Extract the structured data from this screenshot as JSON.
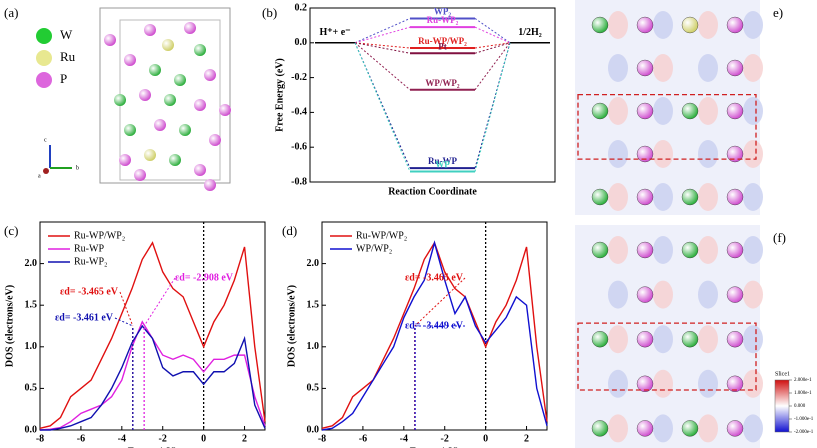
{
  "structure": {
    "label": "(a)",
    "legend": [
      {
        "name": "W",
        "color": "#22cc33"
      },
      {
        "name": "Ru",
        "color": "#e8e890"
      },
      {
        "name": "P",
        "color": "#dd66dd"
      }
    ],
    "axes": [
      "c",
      "a",
      "b"
    ]
  },
  "maps": [
    {
      "label": "e)"
    },
    {
      "label": "(f)"
    }
  ],
  "colorbar": {
    "title": "Slice1",
    "ticks": [
      {
        "value": 0.2,
        "label": "2.000e-1"
      },
      {
        "value": 0.1,
        "label": "1.000e-1"
      },
      {
        "value": 0,
        "label": "0.000"
      },
      {
        "value": -0.1,
        "label": "-1.000e-1"
      },
      {
        "value": -0.2,
        "label": "-2.000e-1"
      }
    ]
  },
  "chart_data": [
    {
      "type": "level",
      "label": "(b)",
      "ylabel": "Free Energy (eV)",
      "xlabel": "Reaction Coordinate",
      "endpoints": [
        {
          "label": "H⁺+ e⁻",
          "value": 0
        },
        {
          "label": "1/2H₂",
          "value": 0
        }
      ],
      "levels": [
        {
          "name": "WP₂",
          "value": 0.14,
          "color": "#5050c8"
        },
        {
          "name": "Ru-WP₂",
          "value": 0.09,
          "color": "#e040e0"
        },
        {
          "name": "Ru-WP/WP₂",
          "value": -0.03,
          "color": "#e02020"
        },
        {
          "name": "Pt",
          "value": -0.06,
          "color": "#801040"
        },
        {
          "name": "WP/WP₂",
          "value": -0.27,
          "color": "#902050"
        },
        {
          "name": "Ru-WP",
          "value": -0.72,
          "color": "#202090"
        },
        {
          "name": "WP",
          "value": -0.74,
          "color": "#40d0c0"
        }
      ],
      "ylim": [
        -0.8,
        0.2
      ],
      "yticks": [
        -0.8,
        -0.6,
        -0.4,
        -0.2,
        {
          "value": 0,
          "label": "0.0"
        },
        0.2
      ]
    },
    {
      "type": "line",
      "label": "(c)",
      "ylabel": "DOS (electrons/eV)",
      "xlabel": "Energy(eV)",
      "x": [
        -8,
        -7.5,
        -7,
        -6.5,
        -6,
        -5.5,
        -5,
        -4.5,
        -4,
        -3.5,
        -3,
        -2.5,
        -2,
        -1.5,
        -1,
        -0.5,
        0,
        0.5,
        1,
        1.5,
        2,
        2.5,
        3
      ],
      "series": [
        {
          "name": "Ru-WP/WP₂",
          "color": "#e01010",
          "values": [
            0.02,
            0.05,
            0.15,
            0.4,
            0.5,
            0.6,
            0.85,
            1.1,
            1.4,
            1.7,
            2.05,
            2.25,
            1.9,
            1.7,
            1.6,
            1.3,
            1.0,
            1.3,
            1.5,
            1.8,
            2.2,
            1.0,
            0.1
          ]
        },
        {
          "name": "Ru-WP",
          "color": "#e020e0",
          "values": [
            0,
            0.01,
            0.03,
            0.1,
            0.2,
            0.25,
            0.3,
            0.4,
            0.6,
            1.0,
            1.3,
            1.1,
            0.9,
            0.85,
            0.9,
            0.85,
            0.7,
            0.85,
            0.85,
            0.9,
            0.9,
            0.4,
            0.05
          ]
        },
        {
          "name": "Ru-WP₂",
          "color": "#1010b0",
          "values": [
            0,
            0,
            0.02,
            0.05,
            0.1,
            0.15,
            0.3,
            0.5,
            0.75,
            1.05,
            1.25,
            1.1,
            0.75,
            0.65,
            0.7,
            0.7,
            0.55,
            0.7,
            0.7,
            0.8,
            1.1,
            0.3,
            0.02
          ]
        }
      ],
      "d_band_centers": [
        {
          "value": -3.465,
          "label": "εd= -3.465 eV",
          "color": "#e01010"
        },
        {
          "value": -2.908,
          "label": "εd= -2.908 eV",
          "color": "#e020e0"
        },
        {
          "value": -3.461,
          "label": "εd= -3.461 eV",
          "color": "#1010b0"
        }
      ],
      "fermi_level": 0,
      "xlim": [
        -8,
        3
      ],
      "xticks": [
        -8,
        -6,
        -4,
        -2,
        0,
        2
      ],
      "ylim": [
        0,
        2.5
      ],
      "yticks": [
        {
          "value": 0,
          "label": "0.0"
        },
        0.5,
        {
          "value": 1,
          "label": "1.0"
        },
        1.5,
        {
          "value": 2,
          "label": "2.0"
        }
      ]
    },
    {
      "type": "line",
      "label": "(d)",
      "ylabel": "DOS (electrons/eV)",
      "xlabel": "Energy(eV)",
      "x": [
        -8,
        -7.5,
        -7,
        -6.5,
        -6,
        -5.5,
        -5,
        -4.5,
        -4,
        -3.5,
        -3,
        -2.5,
        -2,
        -1.5,
        -1,
        -0.5,
        0,
        0.5,
        1,
        1.5,
        2,
        2.5,
        3
      ],
      "series": [
        {
          "name": "Ru-WP/WP₂",
          "color": "#e01010",
          "values": [
            0.02,
            0.05,
            0.15,
            0.4,
            0.5,
            0.6,
            0.85,
            1.1,
            1.4,
            1.7,
            2.05,
            2.25,
            1.9,
            1.7,
            1.6,
            1.3,
            1.0,
            1.3,
            1.5,
            1.8,
            2.2,
            1.0,
            0.1
          ]
        },
        {
          "name": "WP/WP₂",
          "color": "#1010d0",
          "values": [
            0,
            0.02,
            0.1,
            0.2,
            0.4,
            0.6,
            0.8,
            1.0,
            1.35,
            1.6,
            1.8,
            2.25,
            1.8,
            1.4,
            1.6,
            1.25,
            1.05,
            1.2,
            1.35,
            1.6,
            1.5,
            0.5,
            0.05
          ]
        }
      ],
      "d_band_centers": [
        {
          "value": -3.465,
          "label": "εd= -3.465 eV",
          "color": "#e01010"
        },
        {
          "value": -3.449,
          "label": "εd= -3.449 eV",
          "color": "#1010d0"
        }
      ],
      "fermi_level": 0,
      "xlim": [
        -8,
        3
      ],
      "xticks": [
        -8,
        -6,
        -4,
        -2,
        0,
        2
      ],
      "ylim": [
        0,
        2.5
      ],
      "yticks": [
        {
          "value": 0,
          "label": "0.0"
        },
        0.5,
        {
          "value": 1,
          "label": "1.0"
        },
        1.5,
        {
          "value": 2,
          "label": "2.0"
        }
      ]
    }
  ]
}
